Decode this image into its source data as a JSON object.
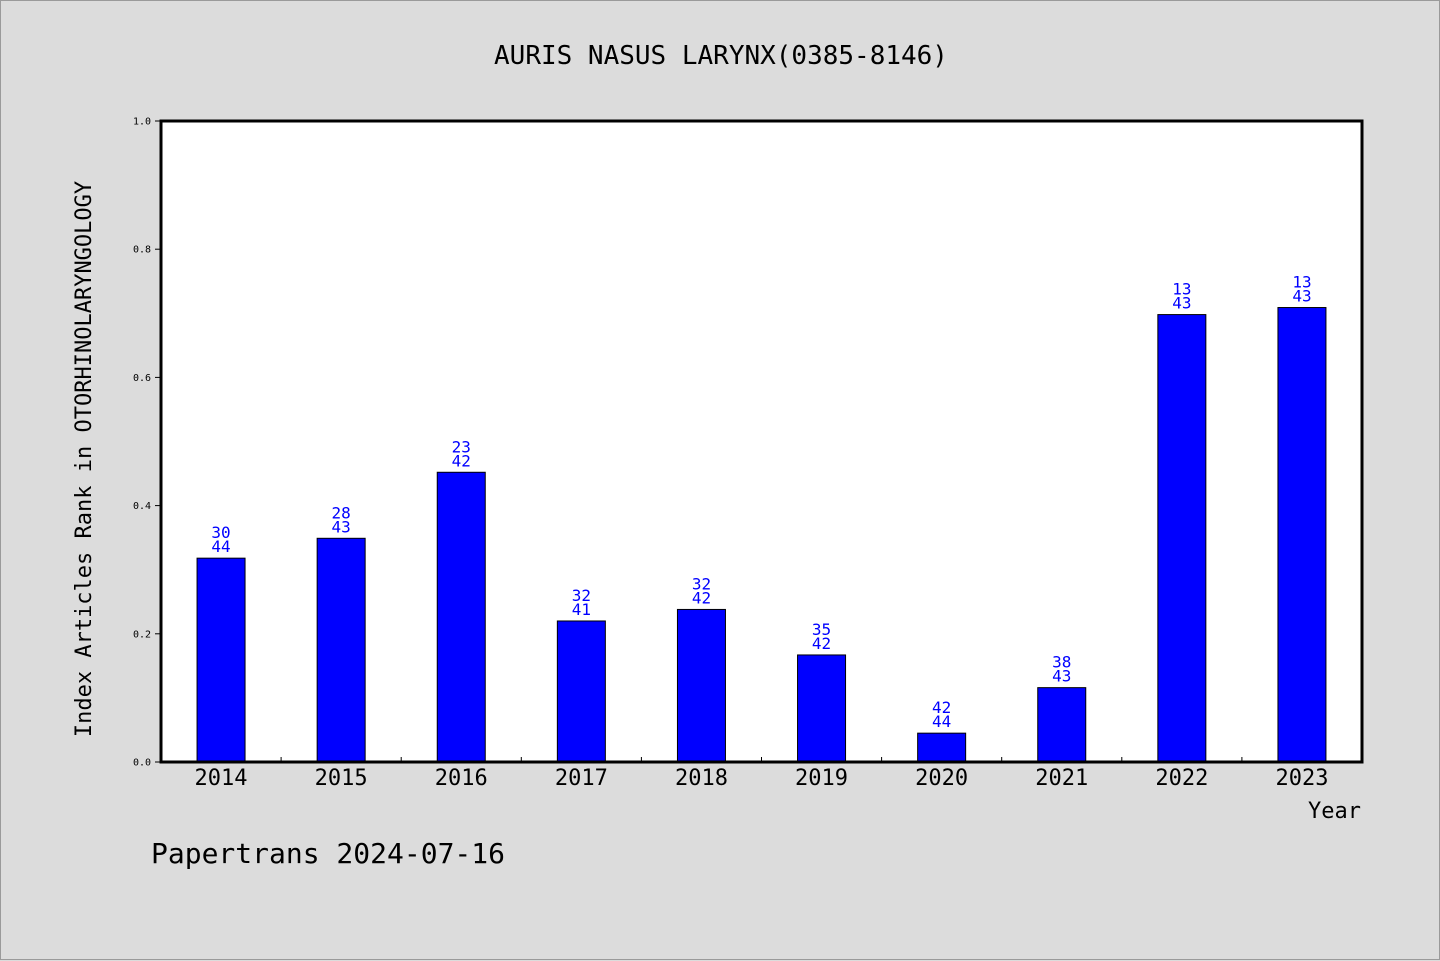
{
  "chart_data": {
    "type": "bar",
    "title": "AURIS NASUS LARYNX(0385-8146)",
    "xlabel": "Year",
    "ylabel": "Index Articles Rank in OTORHINOLARYNGOLOGY",
    "ylim": [
      0,
      1.0
    ],
    "yticks": [
      "0.0",
      "0.2",
      "0.4",
      "0.6",
      "0.8",
      "1.0"
    ],
    "grid": false,
    "categories": [
      "2014",
      "2015",
      "2016",
      "2017",
      "2018",
      "2019",
      "2020",
      "2021",
      "2022",
      "2023"
    ],
    "values": [
      0.318,
      0.349,
      0.452,
      0.22,
      0.238,
      0.167,
      0.045,
      0.116,
      0.698,
      0.709
    ],
    "rank": [
      "30",
      "28",
      "23",
      "32",
      "32",
      "35",
      "42",
      "38",
      "13",
      "13"
    ],
    "total": [
      "44",
      "43",
      "42",
      "41",
      "42",
      "42",
      "44",
      "43",
      "43",
      "43"
    ],
    "bar_color": "#0000ff",
    "label_color": "#0000ff"
  },
  "footer": {
    "text": "Papertrans 2024-07-16"
  }
}
